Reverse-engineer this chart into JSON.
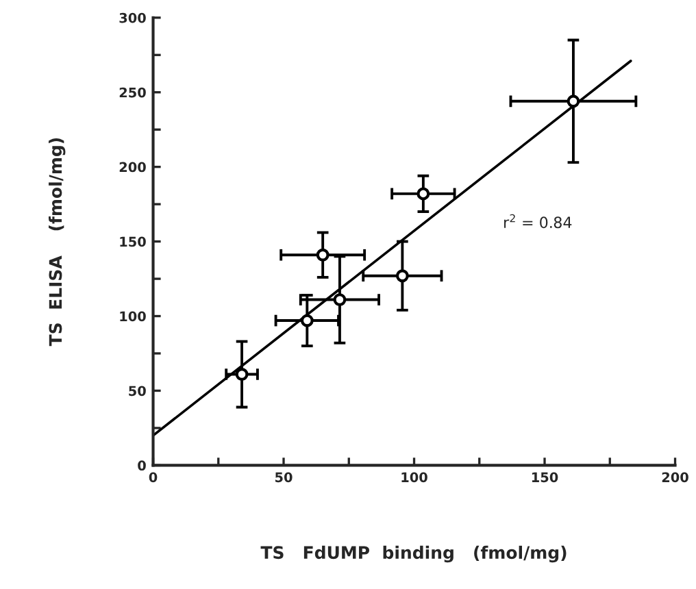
{
  "chart_data": {
    "type": "scatter",
    "xlabel": "TS   FdUMP  binding   (fmol/mg)",
    "ylabel": "TS  ELISA    (fmol/mg)",
    "annotations": [
      "r$^{2}$ = 0.84"
    ],
    "xlim": [
      0,
      200
    ],
    "ylim": [
      0,
      300
    ],
    "xticks": [
      0,
      {
        "value": 25,
        "label": null
      },
      50,
      {
        "value": 75,
        "label": null
      },
      100,
      {
        "value": 125,
        "label": null
      },
      150,
      {
        "value": 175,
        "label": null
      },
      200
    ],
    "yticks": [
      0,
      {
        "value": 25,
        "label": null
      },
      50,
      {
        "value": 75,
        "label": null
      },
      100,
      {
        "value": 125,
        "label": null
      },
      150,
      {
        "value": 175,
        "label": null
      },
      200,
      {
        "value": 225,
        "label": null
      },
      250,
      {
        "value": 275,
        "label": null
      },
      300
    ],
    "grid": false,
    "series": [
      {
        "marker": "circle",
        "color": "#000000",
        "x": [
          34,
          59,
          65,
          71.5,
          95.5,
          103.5,
          161
        ],
        "values": [
          61,
          97,
          141,
          111,
          127,
          182,
          244
        ],
        "errors": [
          22,
          17,
          15,
          29,
          23,
          12,
          41
        ],
        "xerrors": [
          6,
          12,
          16,
          15,
          15,
          12,
          24
        ]
      },
      {
        "type": "line",
        "color": "#000000",
        "x": [
          0,
          183
        ],
        "values": [
          20,
          271
        ]
      }
    ]
  }
}
